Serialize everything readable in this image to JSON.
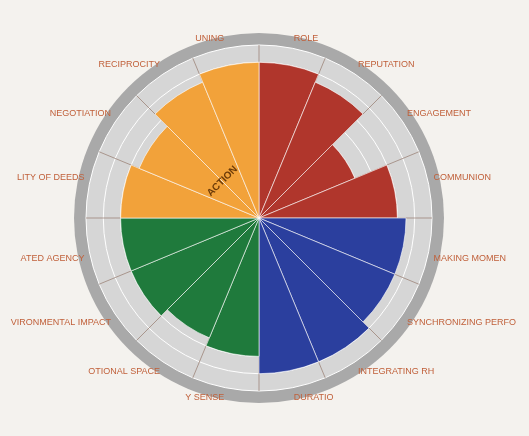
{
  "chart_data": {
    "type": "polarArea",
    "categories": [
      "ROLE",
      "REPUTATION",
      "ENGAGEMENT",
      "COMMUNION",
      "MAKING MOMEN",
      "SYNCHRONIZING PERFO",
      "INTEGRATING RH",
      "DURATIO",
      "Y SENSE",
      "OTIONAL SPACE",
      "VIRONMENTAL IMPACT",
      "ATED AGENCY",
      "LITY OF DEEDS",
      "NEGOTIATION",
      "RECIPROCITY",
      "UNING"
    ],
    "values": [
      9,
      8.5,
      6,
      8,
      8.5,
      8.5,
      9,
      9,
      8,
      7.5,
      8,
      8,
      8,
      7.5,
      8.5,
      9
    ],
    "colors": [
      "#b0362c",
      "#b0362c",
      "#b0362c",
      "#b0362c",
      "#2b3f9e",
      "#2b3f9e",
      "#2b3f9e",
      "#2b3f9e",
      "#1f7a3c",
      "#1f7a3c",
      "#1f7a3c",
      "#1f7a3c",
      "#f2a23a",
      "#f2a23a",
      "#f2a23a",
      "#f2a23a"
    ],
    "ylim": [
      0,
      10
    ],
    "yticks": [
      0,
      1,
      2,
      3,
      4,
      5,
      6,
      7,
      8,
      9,
      10
    ],
    "grid": true,
    "tick_labels": false,
    "annotations": [
      "ACTION"
    ]
  }
}
